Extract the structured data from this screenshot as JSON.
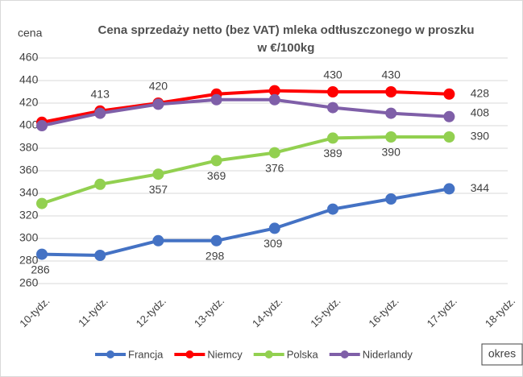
{
  "chart_data": {
    "type": "line",
    "title": [
      "Cena sprzedaży netto (bez VAT) mleka odtłuszczonego w proszku",
      "w €/100kg"
    ],
    "y_label": "cena",
    "x_label": "okres",
    "categories": [
      "10-tydz.",
      "11-tydz.",
      "12-tydz.",
      "13-tydz.",
      "14-tydz.",
      "15-tydz.",
      "16-tydz.",
      "17-tydz.",
      "18-tydz."
    ],
    "series": [
      {
        "name": "Francja",
        "color": "#4472c4",
        "values": [
          286,
          285,
          298,
          298,
          309,
          326,
          335,
          344,
          null
        ],
        "value_labels": [
          "286",
          null,
          null,
          "298",
          "309",
          null,
          null,
          "344",
          null
        ]
      },
      {
        "name": "Niemcy",
        "color": "#ff0000",
        "values": [
          403,
          413,
          420,
          428,
          431,
          430,
          430,
          428,
          null
        ],
        "value_labels": [
          null,
          "413",
          "420",
          null,
          null,
          "430",
          "430",
          "428",
          null
        ]
      },
      {
        "name": "Polska",
        "color": "#92d050",
        "values": [
          331,
          348,
          357,
          369,
          376,
          389,
          390,
          390,
          null
        ],
        "value_labels": [
          null,
          null,
          "357",
          "369",
          "376",
          "389",
          "390",
          "390",
          null
        ]
      },
      {
        "name": "Niderlandy",
        "color": "#7f5fa8",
        "values": [
          400,
          411,
          419,
          423,
          423,
          416,
          411,
          408,
          null
        ],
        "value_labels": [
          null,
          null,
          null,
          null,
          null,
          null,
          null,
          "408",
          null
        ]
      }
    ],
    "ylim": [
      260,
      460
    ],
    "yticks": [
      260,
      280,
      300,
      320,
      340,
      360,
      380,
      400,
      420,
      440,
      460
    ],
    "grid": true,
    "legend": "bottom"
  }
}
